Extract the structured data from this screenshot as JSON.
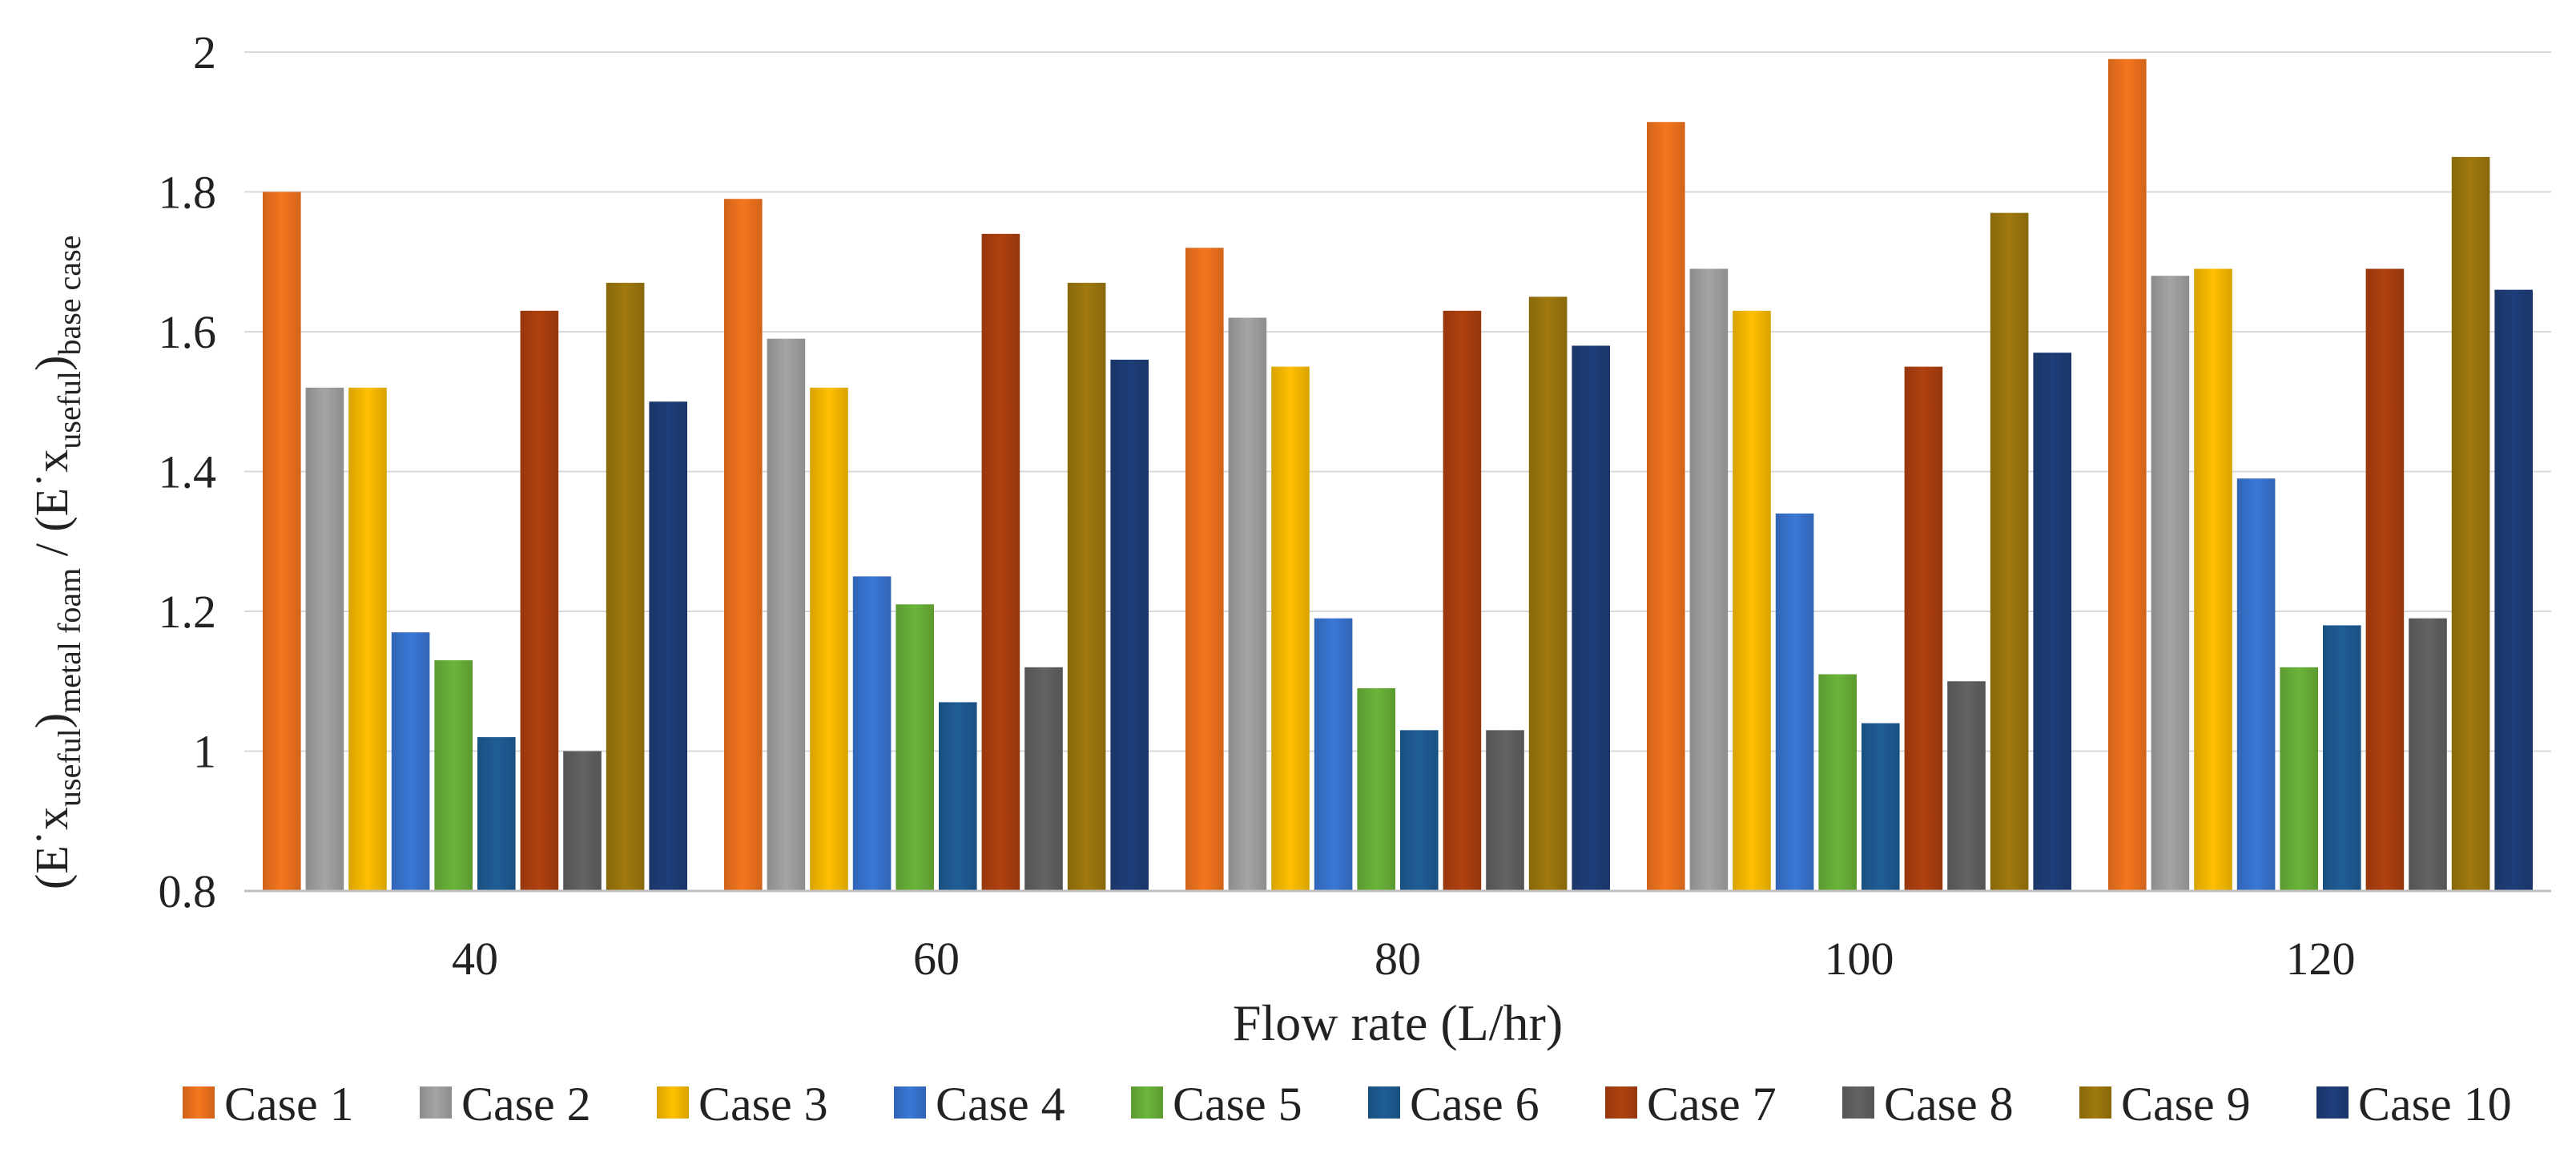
{
  "chart_data": {
    "type": "bar",
    "xlabel": "Flow rate (L/hr)",
    "ylabel": {
      "numerator_main": "(E˙x",
      "numerator_sub1": "useful",
      "numerator_close": ")",
      "numerator_sub2": "metal foam",
      "divider": " / ",
      "denominator_main": "(E˙x",
      "denominator_sub1": "useful",
      "denominator_close": ")",
      "denominator_sub2": "base case"
    },
    "categories": [
      "40",
      "60",
      "80",
      "100",
      "120"
    ],
    "ylim": [
      0.8,
      2.0
    ],
    "yticks": [
      0.8,
      1.0,
      1.2,
      1.4,
      1.6,
      1.8,
      2.0
    ],
    "ytick_labels": [
      "0.8",
      "1",
      "1.2",
      "1.4",
      "1.6",
      "1.8",
      "2"
    ],
    "grid": true,
    "legend_position": "bottom",
    "series": [
      {
        "name": "Case 1",
        "color": "#F5761F",
        "values": [
          1.8,
          1.79,
          1.72,
          1.9,
          1.99
        ]
      },
      {
        "name": "Case 2",
        "color": "#A5A5A5",
        "values": [
          1.52,
          1.59,
          1.62,
          1.69,
          1.68
        ]
      },
      {
        "name": "Case 3",
        "color": "#FFC000",
        "values": [
          1.52,
          1.52,
          1.55,
          1.63,
          1.69
        ]
      },
      {
        "name": "Case 4",
        "color": "#3A77D6",
        "values": [
          1.17,
          1.25,
          1.19,
          1.34,
          1.39
        ]
      },
      {
        "name": "Case 5",
        "color": "#6BB53A",
        "values": [
          1.13,
          1.21,
          1.09,
          1.11,
          1.12
        ]
      },
      {
        "name": "Case 6",
        "color": "#1F5E96",
        "values": [
          1.02,
          1.07,
          1.03,
          1.04,
          1.18
        ]
      },
      {
        "name": "Case 7",
        "color": "#B0410F",
        "values": [
          1.63,
          1.74,
          1.63,
          1.55,
          1.69
        ]
      },
      {
        "name": "Case 8",
        "color": "#636363",
        "values": [
          1.0,
          1.12,
          1.03,
          1.1,
          1.19
        ]
      },
      {
        "name": "Case 9",
        "color": "#A07A0E",
        "values": [
          1.67,
          1.67,
          1.65,
          1.77,
          1.85
        ]
      },
      {
        "name": "Case 10",
        "color": "#1E3E7A",
        "values": [
          1.5,
          1.56,
          1.58,
          1.57,
          1.66
        ]
      }
    ]
  }
}
